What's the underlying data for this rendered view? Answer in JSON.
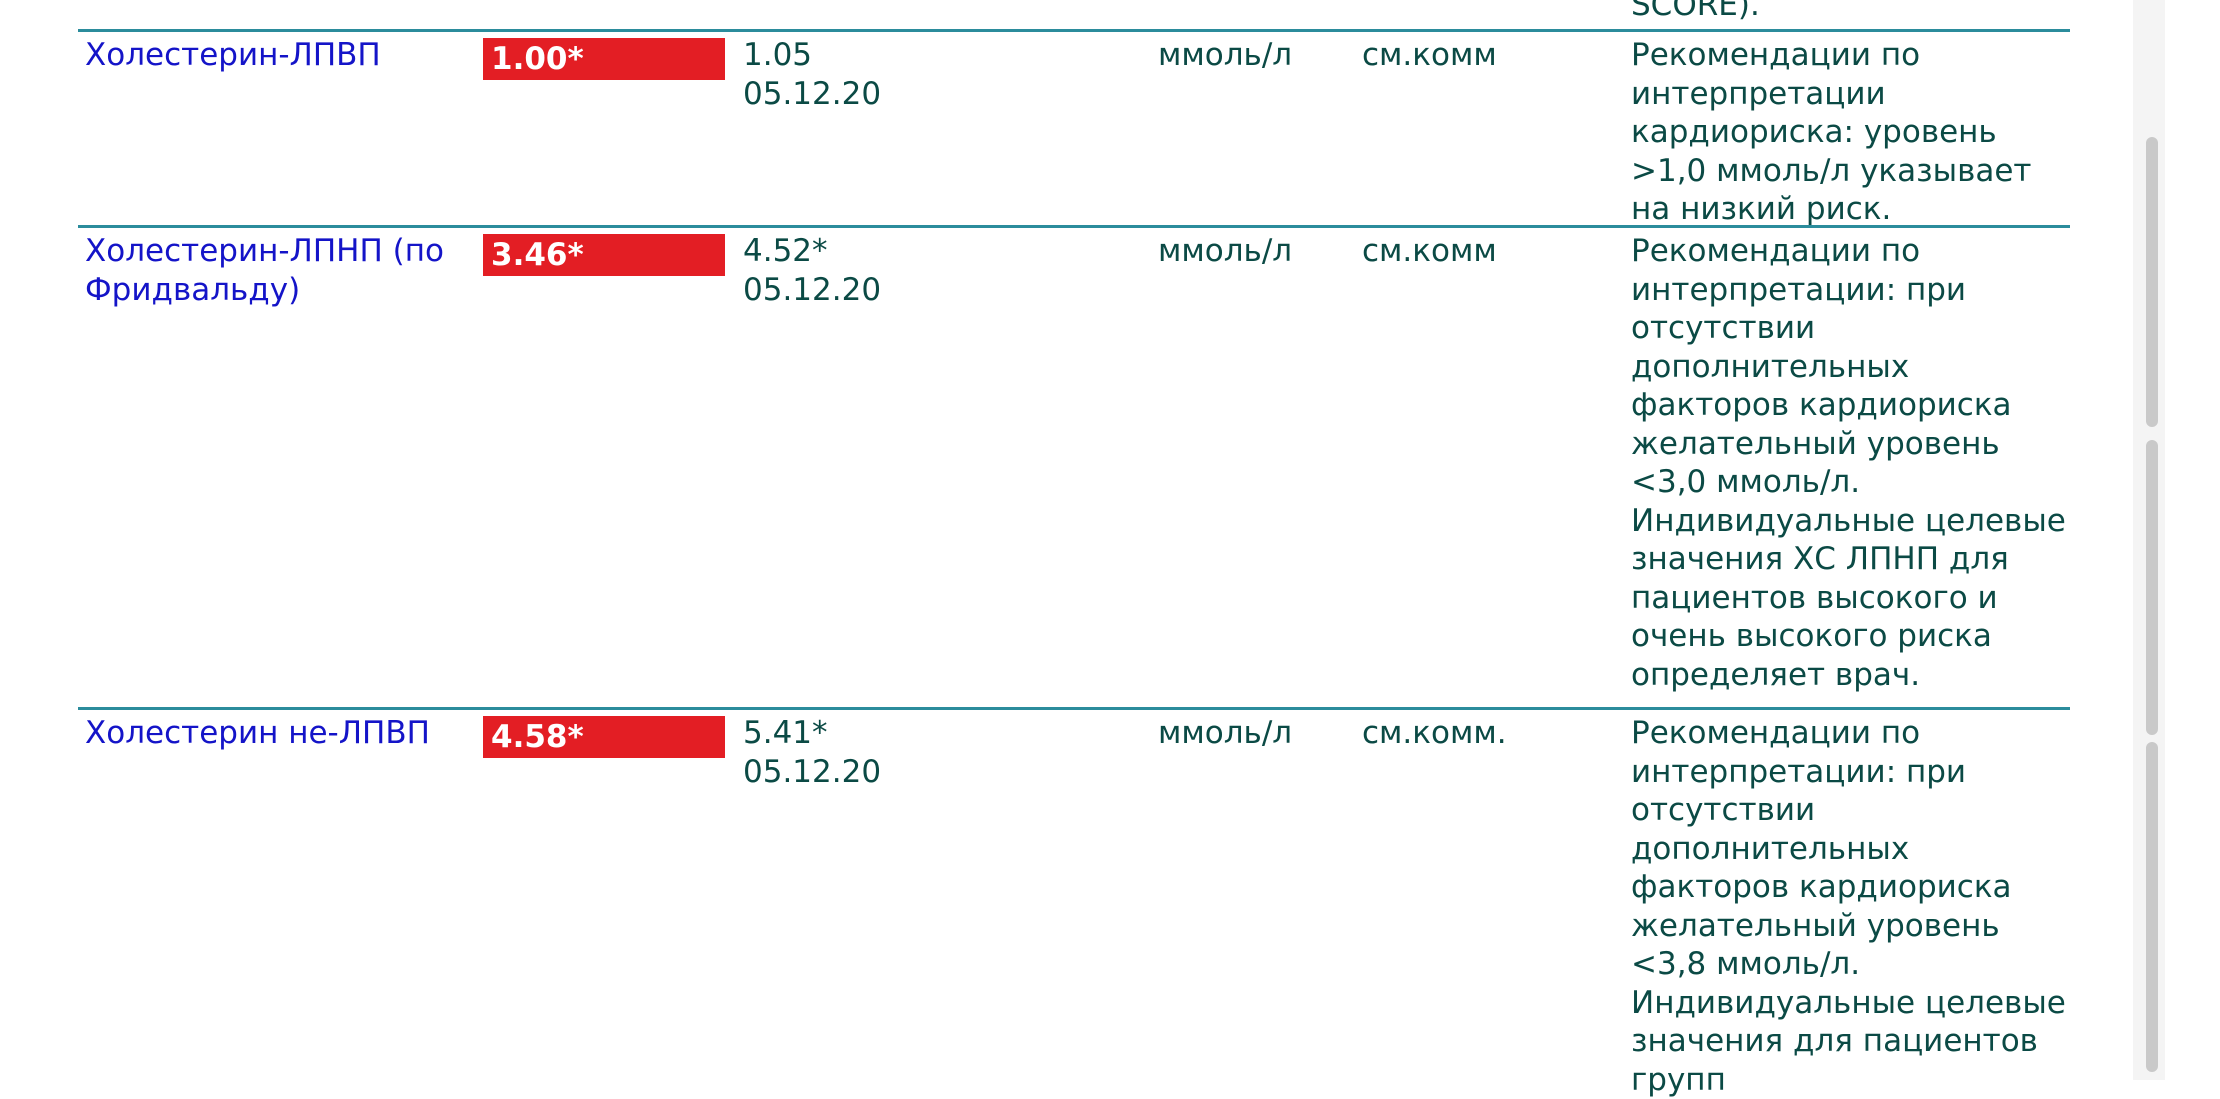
{
  "top_fragment": "SCORE).",
  "rows": [
    {
      "name": "Холестерин-ЛПВП",
      "result": "1.00*",
      "previous": "1.05",
      "previous_date": "05.12.20",
      "unit": "ммоль/л",
      "reference": "см.комм",
      "comment": "Рекомендации по интерпретации кардиориска: уровень >1,0 ммоль/л указывает на низкий риск."
    },
    {
      "name": "Холестерин-ЛПНП (по Фридвальду)",
      "result": "3.46*",
      "previous": "4.52*",
      "previous_date": "05.12.20",
      "unit": "ммоль/л",
      "reference": "см.комм",
      "comment": "Рекомендации по интерпретации: при отсутствии дополнительных факторов кардиориска желательный уровень <3,0 ммоль/л. Индивидуальные целевые значения ХС ЛПНП для пациентов высокого и очень высокого риска определяет врач."
    },
    {
      "name": "Холестерин не-ЛПВП",
      "result": "4.58*",
      "previous": "5.41*",
      "previous_date": "05.12.20",
      "unit": "ммоль/л",
      "reference": "см.комм.",
      "comment": "Рекомендации по интерпретации: при отсутствии дополнительных факторов кардиориска желательный уровень <3,8 ммоль/л. Индивидуальные целевые значения для пациентов групп"
    }
  ],
  "colors": {
    "flag": "#e31e24",
    "name": "#1414c8",
    "text": "#0b4a45",
    "rule": "#2b8c9c"
  }
}
